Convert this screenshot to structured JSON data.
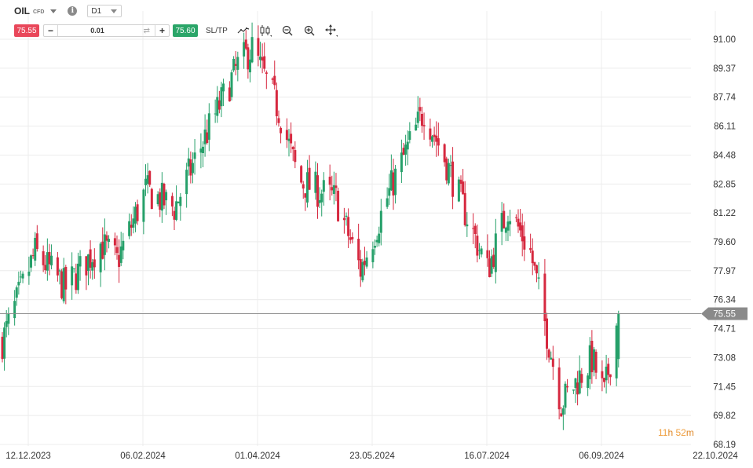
{
  "header": {
    "symbol": "OIL",
    "symbol_type": "CFD",
    "info_icon": "info-icon",
    "timeframe": "D1"
  },
  "trade_bar": {
    "sell_price": "75.55",
    "buy_price": "75.60",
    "quantity": "0.01",
    "minus_label": "−",
    "plus_label": "+",
    "sltp_label": "SL/TP"
  },
  "tools": [
    "line-chart-icon",
    "candlestick-icon",
    "zoom-out-icon",
    "zoom-in-icon",
    "crosshair-move-icon"
  ],
  "colors": {
    "bull": "#26a06a",
    "bear": "#d6283f",
    "current_price_line": "#8a8a8a",
    "current_price_bg": "#8a8a8a",
    "grid": "#ececec",
    "timer_hours": "#f0a040"
  },
  "timer": {
    "hours": "11",
    "h_label": "h",
    "minutes": "52",
    "m_label": "m"
  },
  "chart_data": {
    "type": "candlestick",
    "symbol": "OIL",
    "timeframe": "D1",
    "current_price": 75.55,
    "ylim": [
      68.19,
      91.0
    ],
    "y_ticks": [
      "91.00",
      "89.37",
      "87.74",
      "86.11",
      "84.48",
      "82.85",
      "81.22",
      "79.60",
      "77.97",
      "76.34",
      "74.71",
      "73.08",
      "71.45",
      "69.82",
      "68.19"
    ],
    "x_ticks": [
      "12.12.2023",
      "06.02.2024",
      "01.04.2024",
      "23.05.2024",
      "16.07.2024",
      "06.09.2024",
      "22.10.2024"
    ],
    "grid": true,
    "close_path_approx": [
      {
        "date": "2023-12-12",
        "close": 74.0
      },
      {
        "date": "2023-12-28",
        "close": 79.0
      },
      {
        "date": "2024-01-12",
        "close": 77.0
      },
      {
        "date": "2024-01-29",
        "close": 79.5
      },
      {
        "date": "2024-02-06",
        "close": 78.5
      },
      {
        "date": "2024-02-20",
        "close": 82.5
      },
      {
        "date": "2024-03-05",
        "close": 81.5
      },
      {
        "date": "2024-03-20",
        "close": 85.5
      },
      {
        "date": "2024-04-05",
        "close": 89.5
      },
      {
        "date": "2024-04-12",
        "close": 90.5
      },
      {
        "date": "2024-04-25",
        "close": 87.0
      },
      {
        "date": "2024-05-05",
        "close": 83.0
      },
      {
        "date": "2024-05-23",
        "close": 82.0
      },
      {
        "date": "2024-06-04",
        "close": 78.0
      },
      {
        "date": "2024-06-20",
        "close": 83.0
      },
      {
        "date": "2024-07-05",
        "close": 87.0
      },
      {
        "date": "2024-07-16",
        "close": 84.0
      },
      {
        "date": "2024-08-05",
        "close": 78.0
      },
      {
        "date": "2024-08-15",
        "close": 81.5
      },
      {
        "date": "2024-08-26",
        "close": 79.0
      },
      {
        "date": "2024-09-10",
        "close": 70.5
      },
      {
        "date": "2024-09-25",
        "close": 73.0
      },
      {
        "date": "2024-10-01",
        "close": 71.0
      },
      {
        "date": "2024-10-08",
        "close": 75.55
      }
    ]
  }
}
